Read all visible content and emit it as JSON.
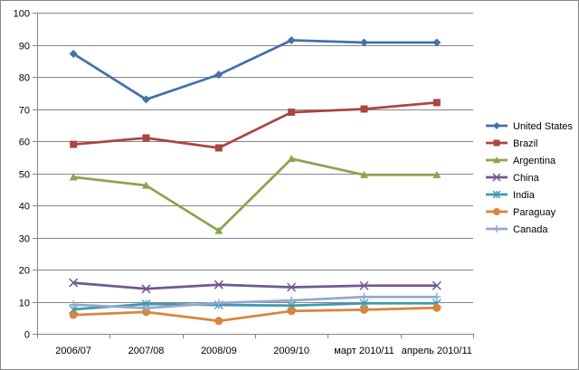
{
  "chart_data": {
    "type": "line",
    "title": "",
    "xlabel": "",
    "ylabel": "",
    "categories": [
      "2006/07",
      "2007/08",
      "2008/09",
      "2009/10",
      "март 2010/11",
      "апрель 2010/11"
    ],
    "ylim": [
      0,
      100
    ],
    "yticks": [
      0,
      10,
      20,
      30,
      40,
      50,
      60,
      70,
      80,
      90,
      100
    ],
    "grid": "horizontal",
    "legend_position": "right",
    "series": [
      {
        "name": "United States",
        "color": "#4572A7",
        "marker": "diamond",
        "values": [
          87.2,
          73,
          80.7,
          91.4,
          90.7,
          90.7
        ]
      },
      {
        "name": "Brazil",
        "color": "#AA4643",
        "marker": "square",
        "values": [
          59,
          61,
          57.9,
          69,
          70,
          72
        ]
      },
      {
        "name": "Argentina",
        "color": "#89A54E",
        "marker": "triangle",
        "values": [
          48.8,
          46.2,
          32.1,
          54.5,
          49.5,
          49.5
        ]
      },
      {
        "name": "China",
        "color": "#71588F",
        "marker": "x",
        "values": [
          15.9,
          14,
          15.3,
          14.5,
          15,
          15
        ]
      },
      {
        "name": "India",
        "color": "#4198AF",
        "marker": "star",
        "values": [
          7.6,
          9.3,
          9,
          8.8,
          9.5,
          9.5
        ]
      },
      {
        "name": "Paraguay",
        "color": "#DB843D",
        "marker": "circle",
        "values": [
          5.9,
          6.8,
          4,
          7.1,
          7.5,
          8.1
        ]
      },
      {
        "name": "Canada",
        "color": "#93A9CF",
        "marker": "plus",
        "values": [
          9.1,
          8,
          9.6,
          10.4,
          11.5,
          11.5
        ]
      }
    ]
  }
}
